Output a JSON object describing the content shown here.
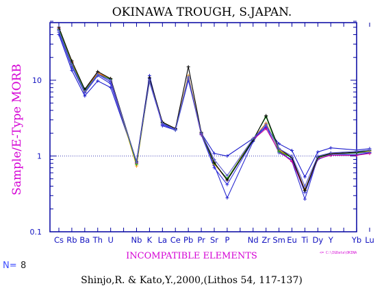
{
  "chart_data": {
    "type": "line",
    "title": "OKINAWA TROUGH, S.JAPAN.",
    "ylabel": "Sample/E-Type MORB",
    "xlabel": "INCOMPATIBLE ELEMENTS",
    "yscale": "log",
    "ylim": [
      0.1,
      60
    ],
    "yticks": [
      "10",
      "1",
      "0.1"
    ],
    "reference_line": 1,
    "categories": [
      "Cs",
      "Rb",
      "Ba",
      "Th",
      "U",
      "Nb",
      "K",
      "La",
      "Ce",
      "Pb",
      "Pr",
      "Sr",
      "P",
      "Nd",
      "Zr",
      "Sm",
      "Eu",
      "Ti",
      "Dy",
      "Y",
      "Yb",
      "Lu"
    ],
    "category_labels": [
      "Cs",
      "Rb",
      "Ba",
      "Th",
      "U",
      "",
      "Nb",
      "K",
      "La",
      "Ce",
      "Pb",
      "Pr",
      "Sr",
      "P",
      "",
      "Nd",
      "Zr",
      "Sm",
      "Eu",
      "Ti",
      "Dy",
      "Y",
      "",
      "Yb",
      "Lu"
    ],
    "series": [
      {
        "color": "#1a1acc",
        "values": [
          40,
          13.5,
          6.2,
          9.8,
          8.0,
          0.85,
          11.5,
          2.5,
          2.2,
          10.0,
          2.0,
          1.08,
          1.0,
          1.7,
          2.4,
          1.45,
          1.18,
          0.53,
          1.13,
          1.28,
          1.2,
          1.25
        ]
      },
      {
        "color": "#2a2ad0",
        "values": [
          43,
          15,
          6.8,
          11.5,
          9.0,
          0.85,
          10.5,
          2.6,
          2.3,
          11.0,
          1.95,
          0.75,
          0.28,
          1.55,
          2.7,
          1.2,
          0.85,
          0.27,
          0.95,
          1.05,
          1.05,
          1.1
        ]
      },
      {
        "color": "#3535e0",
        "values": [
          46,
          16,
          7.0,
          12.0,
          9.5,
          0.82,
          9.5,
          2.6,
          2.2,
          10.5,
          1.9,
          0.7,
          0.42,
          1.6,
          2.5,
          1.1,
          0.9,
          0.33,
          0.9,
          1.05,
          1.1,
          1.12
        ]
      },
      {
        "color": "#c8009a",
        "values": [
          48,
          17,
          7.5,
          12.5,
          10.0,
          0.8,
          10.0,
          2.7,
          2.3,
          11.0,
          1.95,
          0.8,
          0.48,
          1.65,
          2.3,
          1.15,
          0.85,
          0.35,
          0.92,
          1.02,
          1.02,
          1.08
        ]
      },
      {
        "color": "#ff8a00",
        "values": [
          50,
          17.5,
          7.2,
          12.5,
          10.5,
          0.74,
          10.0,
          2.8,
          2.3,
          11.5,
          2.05,
          0.78,
          0.5,
          1.7,
          2.7,
          1.2,
          0.95,
          0.36,
          0.95,
          1.07,
          1.1,
          1.16
        ]
      },
      {
        "color": "#18a818",
        "values": [
          47,
          16.5,
          7.3,
          12.0,
          10.3,
          0.78,
          10.0,
          2.75,
          2.25,
          11.0,
          2.0,
          0.8,
          0.5,
          1.65,
          3.3,
          1.15,
          0.95,
          0.35,
          0.95,
          1.08,
          1.1,
          1.18
        ]
      },
      {
        "color": "#000000",
        "values": [
          50,
          18,
          7.6,
          13.0,
          10.5,
          0.83,
          10.8,
          2.8,
          2.3,
          15.0,
          2.05,
          0.82,
          0.48,
          1.62,
          3.4,
          1.25,
          0.95,
          0.35,
          0.97,
          1.08,
          1.12,
          1.2
        ]
      },
      {
        "color": "#5a5acc",
        "values": [
          45,
          16,
          7.0,
          12.0,
          10.0,
          0.83,
          10.0,
          2.7,
          2.25,
          11.0,
          2.0,
          0.9,
          0.55,
          1.7,
          2.6,
          1.25,
          1.0,
          0.4,
          1.0,
          1.1,
          1.15,
          1.2
        ]
      }
    ]
  },
  "n_label": "N=",
  "n_value": "8",
  "citation": "Shinjo,R. & Kato,Y.,2000,(Lithos 54, 117-137)",
  "file_path": "<= C:\\IGData\\OKINA"
}
